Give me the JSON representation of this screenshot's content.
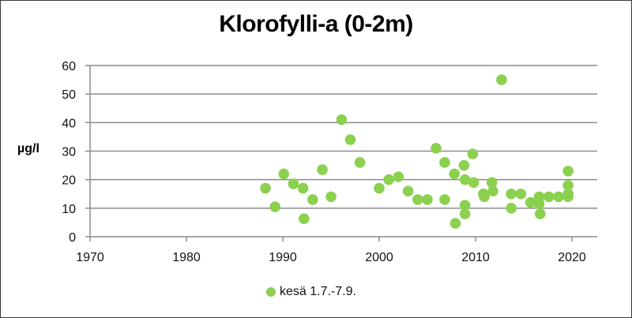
{
  "chart_data": {
    "type": "scatter",
    "title": "Klorofylli-a (0-2m)",
    "xlabel": "",
    "ylabel": "µg/l",
    "xlim": [
      1970,
      2023
    ],
    "ylim": [
      0,
      60
    ],
    "x_ticks": [
      1970,
      1980,
      1990,
      2000,
      2010,
      2020
    ],
    "y_ticks": [
      0,
      10,
      20,
      30,
      40,
      50,
      60
    ],
    "grid": {
      "horizontal": true,
      "vertical": false
    },
    "legend_position": "bottom",
    "series": [
      {
        "name": "kesä 1.7.-7.9.",
        "color": "#8cd050",
        "marker": "circle",
        "points": [
          [
            1988.2,
            17
          ],
          [
            1989.2,
            10.5
          ],
          [
            1990.1,
            22
          ],
          [
            1991.1,
            18.5
          ],
          [
            1992.1,
            17
          ],
          [
            1992.2,
            6.3
          ],
          [
            1993.1,
            13
          ],
          [
            1994.1,
            23.5
          ],
          [
            1995.0,
            14
          ],
          [
            1996.1,
            41
          ],
          [
            1997.0,
            34
          ],
          [
            1998.0,
            26
          ],
          [
            2000.0,
            17
          ],
          [
            2001.0,
            20
          ],
          [
            2002.0,
            21
          ],
          [
            2003.0,
            16
          ],
          [
            2004.0,
            13
          ],
          [
            2005.0,
            13
          ],
          [
            2005.9,
            31
          ],
          [
            2006.8,
            26
          ],
          [
            2006.8,
            13
          ],
          [
            2007.8,
            22
          ],
          [
            2007.9,
            4.7
          ],
          [
            2008.8,
            25
          ],
          [
            2008.9,
            20
          ],
          [
            2008.9,
            11
          ],
          [
            2008.9,
            8
          ],
          [
            2009.7,
            29
          ],
          [
            2009.8,
            19
          ],
          [
            2010.8,
            15
          ],
          [
            2010.9,
            14
          ],
          [
            2011.7,
            19
          ],
          [
            2011.8,
            16
          ],
          [
            2012.7,
            55
          ],
          [
            2013.7,
            15
          ],
          [
            2013.7,
            10
          ],
          [
            2014.7,
            15
          ],
          [
            2015.7,
            12
          ],
          [
            2016.6,
            14
          ],
          [
            2016.6,
            11.5
          ],
          [
            2016.7,
            8
          ],
          [
            2017.6,
            14
          ],
          [
            2018.6,
            14
          ],
          [
            2019.6,
            23
          ],
          [
            2019.6,
            18
          ],
          [
            2019.6,
            15
          ],
          [
            2019.6,
            14
          ]
        ]
      }
    ]
  },
  "legend": {
    "label": "kesä 1.7.-7.9.",
    "marker_color": "#8cd050"
  },
  "colors": {
    "marker": "#8cd050",
    "grid": "#8c8c8c",
    "axis": "#8c8c8c",
    "border": "#3a3a3a"
  }
}
